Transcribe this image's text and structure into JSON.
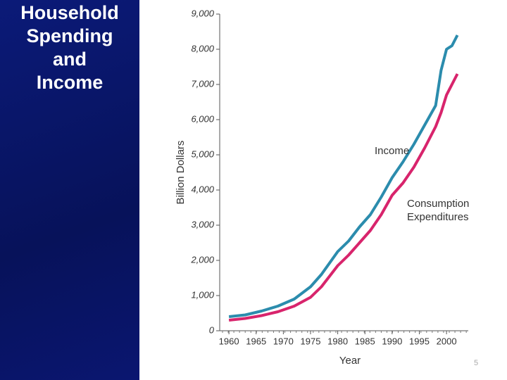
{
  "chart_data": {
    "type": "line",
    "title": "Household Spending and Income",
    "x_label": "Year",
    "y_label": "Billion Dollars",
    "page_number": "5",
    "x": [
      1960,
      1963,
      1966,
      1969,
      1972,
      1975,
      1977,
      1980,
      1982,
      1984,
      1986,
      1988,
      1990,
      1992,
      1994,
      1996,
      1998,
      1999,
      2000,
      2001,
      2002
    ],
    "series": [
      {
        "name": "Income",
        "color": "#2b8cad",
        "values": [
          400,
          450,
          560,
          700,
          900,
          1250,
          1600,
          2250,
          2550,
          2950,
          3300,
          3800,
          4350,
          4800,
          5300,
          5850,
          6400,
          7400,
          8000,
          8100,
          8400
        ]
      },
      {
        "name": "Consumption Expenditures",
        "color": "#d8246c",
        "values": [
          300,
          350,
          430,
          540,
          700,
          950,
          1250,
          1850,
          2150,
          2500,
          2850,
          3300,
          3850,
          4200,
          4650,
          5200,
          5800,
          6200,
          6700,
          7000,
          7300
        ]
      }
    ],
    "xlim": [
      1958.3,
      2004
    ],
    "xticks": [
      1960,
      1965,
      1970,
      1975,
      1980,
      1985,
      1990,
      1995,
      2000
    ],
    "ylim": [
      0,
      9000
    ],
    "yticks": [
      0,
      {
        "value": 1000,
        "label": "1,000"
      },
      {
        "value": 2000,
        "label": "2,000"
      },
      {
        "value": 3000,
        "label": "3,000"
      },
      {
        "value": 4000,
        "label": "4,000"
      },
      {
        "value": 5000,
        "label": "5,000"
      },
      {
        "value": 6000,
        "label": "6,000"
      },
      {
        "value": 7000,
        "label": "7,000"
      },
      {
        "value": 8000,
        "label": "8,000"
      },
      {
        "value": 9000,
        "label": "9,000"
      }
    ]
  }
}
